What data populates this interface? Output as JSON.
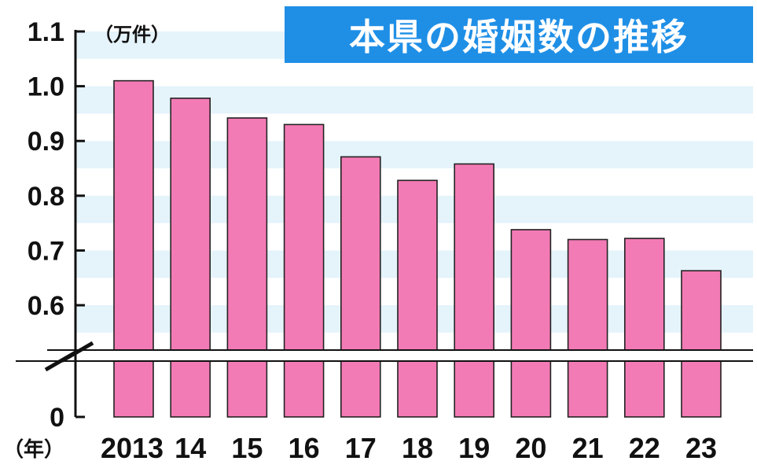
{
  "chart_data": {
    "type": "bar",
    "title": "本県の婚姻数の推移",
    "y_unit": "（万件）",
    "x_unit": "（年）",
    "categories": [
      "2013",
      "14",
      "15",
      "16",
      "17",
      "18",
      "19",
      "20",
      "21",
      "22",
      "23"
    ],
    "values": [
      1.01,
      0.978,
      0.942,
      0.93,
      0.871,
      0.828,
      0.858,
      0.738,
      0.72,
      0.722,
      0.663
    ],
    "y_ticks": [
      "1.1",
      "1.0",
      "0.9",
      "0.8",
      "0.7",
      "0.6",
      "0"
    ],
    "ylim": [
      0.55,
      1.1
    ],
    "axis_break": true,
    "grid": "horizontal bands",
    "legend": "none"
  },
  "colors": {
    "bar": "#f37bb5",
    "title_bg": "#1f8fe6",
    "title_text": "#ffffff",
    "band": "#e5f3fb",
    "axis": "#111111"
  }
}
